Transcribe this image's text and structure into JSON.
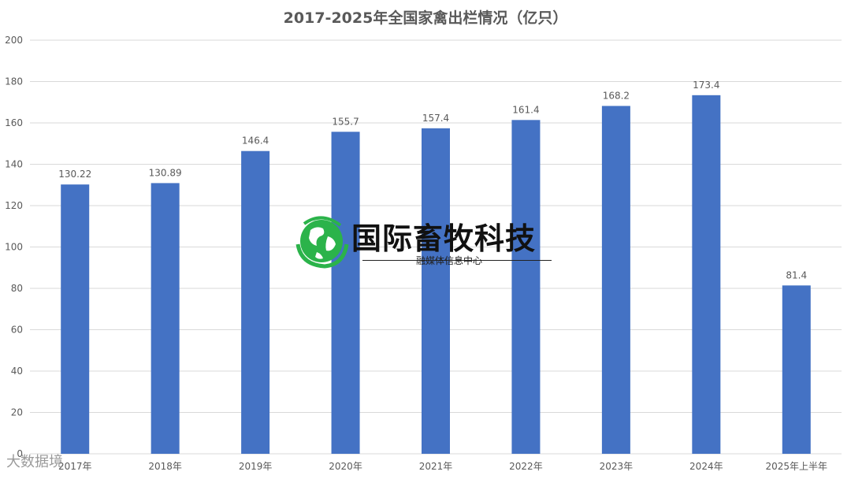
{
  "chart_data": {
    "type": "bar",
    "title": "2017-2025年全国家禽出栏情况（亿只）",
    "categories": [
      "2017年",
      "2018年",
      "2019年",
      "2020年",
      "2021年",
      "2022年",
      "2023年",
      "2024年",
      "2025年上半年"
    ],
    "values": [
      130.22,
      130.89,
      146.4,
      155.7,
      157.4,
      161.4,
      168.2,
      173.4,
      81.4
    ],
    "value_labels": [
      "130.22",
      "130.89",
      "146.4",
      "155.7",
      "157.4",
      "161.4",
      "168.2",
      "173.4",
      "81.4"
    ],
    "ylim": [
      0,
      200
    ],
    "yticks": [
      0,
      20,
      40,
      60,
      80,
      100,
      120,
      140,
      160,
      180,
      200
    ],
    "grid": true,
    "bar_color": "#4472C4",
    "legend": "none"
  },
  "watermark": {
    "logo_text": "国际畜牧科技",
    "logo_subtext": "融媒体信息中心",
    "corner_text": "大数据境"
  },
  "colors": {
    "bar": "#4472C4",
    "grid": "#d9d9d9",
    "axis_text": "#595959",
    "logo_green": "#2bb34a"
  }
}
